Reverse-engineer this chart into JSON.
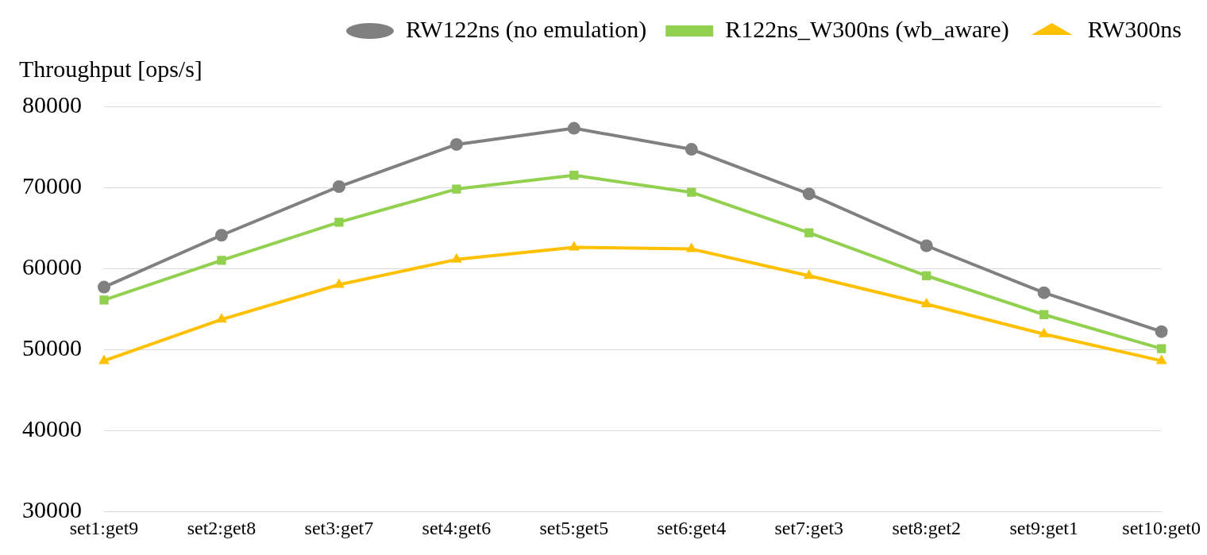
{
  "chart_data": {
    "type": "line",
    "ylabel": "Throughput [ops/s]",
    "categories": [
      "set1:get9",
      "set2:get8",
      "set3:get7",
      "set4:get6",
      "set5:get5",
      "set6:get4",
      "set7:get3",
      "set8:get2",
      "set9:get1",
      "set10:get0"
    ],
    "series": [
      {
        "name": "RW122ns (no emulation)",
        "color": "#808080",
        "marker": "circle",
        "values": [
          57700,
          64100,
          70100,
          75300,
          77300,
          74700,
          69200,
          62800,
          57000,
          52200
        ]
      },
      {
        "name": "R122ns_W300ns (wb_aware)",
        "color": "#92d050",
        "marker": "square",
        "values": [
          56100,
          61000,
          65700,
          69800,
          71500,
          69400,
          64400,
          59100,
          54300,
          50100
        ]
      },
      {
        "name": "RW300ns",
        "color": "#ffc000",
        "marker": "triangle",
        "values": [
          48600,
          53700,
          58000,
          61100,
          62600,
          62400,
          59100,
          55600,
          51900,
          48600
        ]
      }
    ],
    "ylim": [
      30000,
      80000
    ],
    "yticks": [
      {
        "value": 30000,
        "label": "30000"
      },
      {
        "value": 40000,
        "label": "40000"
      },
      {
        "value": 50000,
        "label": "50000"
      },
      {
        "value": 60000,
        "label": "60000"
      },
      {
        "value": 70000,
        "label": "70000"
      },
      {
        "value": 80000,
        "label": "80000"
      }
    ],
    "grid": "y",
    "legend": "top",
    "line_style": "solid"
  }
}
